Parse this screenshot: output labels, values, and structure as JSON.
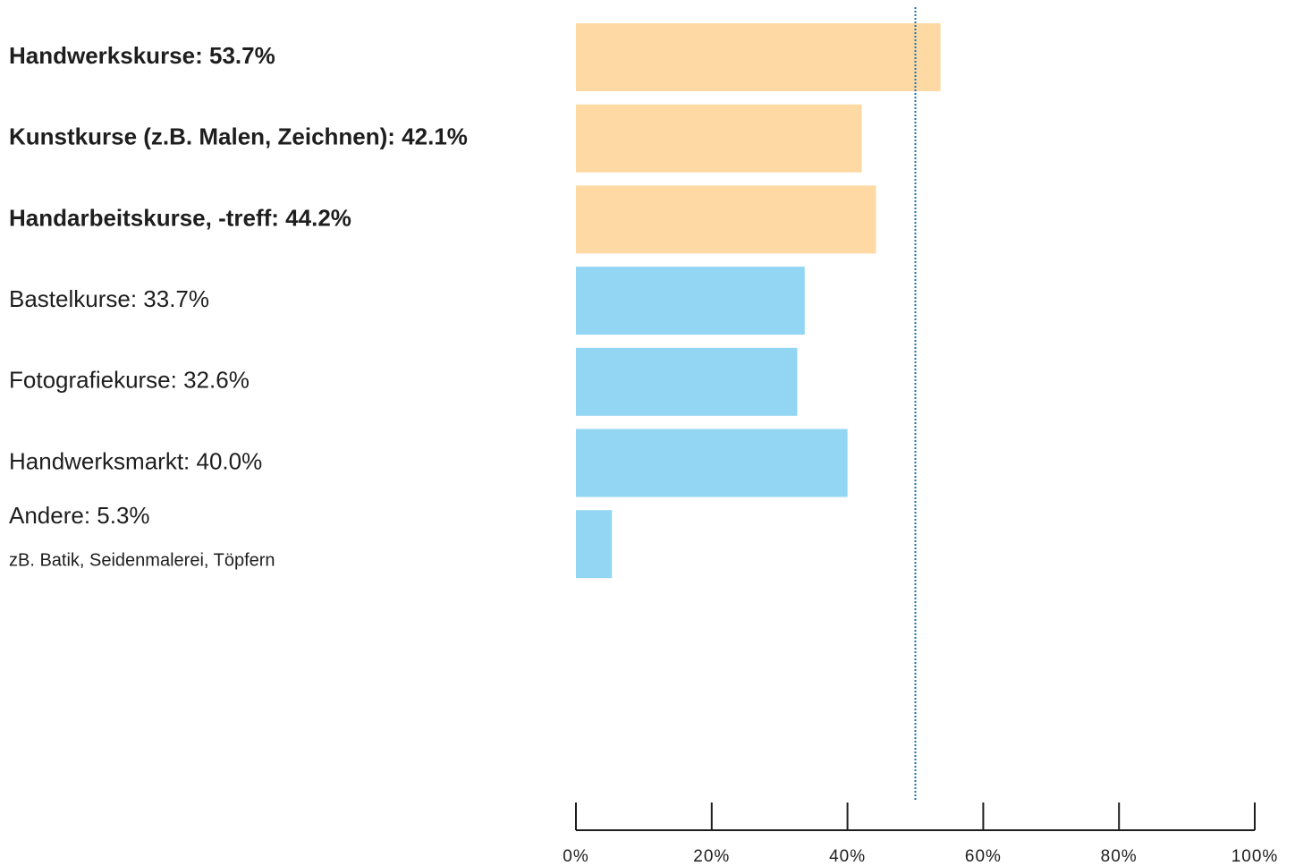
{
  "chart_data": {
    "type": "barh",
    "categories": [
      "Handwerkskurse: 53.7%",
      "Kunstkurse (z.B. Malen, Zeichnen): 42.1%",
      "Handarbeitskurse, -treff: 44.2%",
      "Bastelkurse: 33.7%",
      "Fotografiekurse: 32.6%",
      "Handwerksmarkt: 40.0%",
      "Andere: 5.3%"
    ],
    "values": [
      53.7,
      42.1,
      44.2,
      33.7,
      32.6,
      40.0,
      5.3
    ],
    "colors": [
      "#fed9a4",
      "#fed9a4",
      "#fed9a4",
      "#93d6f4",
      "#93d6f4",
      "#93d6f4",
      "#93d6f4"
    ],
    "bold": [
      true,
      true,
      true,
      false,
      false,
      false,
      false
    ],
    "annotation": "zB. Batik, Seidenmalerei, Töpfern",
    "reference_line": 50,
    "reference_color": "#1f6fa8",
    "xlim": [
      0,
      100
    ],
    "xticks": [
      {
        "value": 0,
        "label": "0%"
      },
      {
        "value": 20,
        "label": "20%"
      },
      {
        "value": 40,
        "label": "40%"
      },
      {
        "value": 60,
        "label": "60%"
      },
      {
        "value": 80,
        "label": "80%"
      },
      {
        "value": 100,
        "label": "100%"
      }
    ]
  }
}
